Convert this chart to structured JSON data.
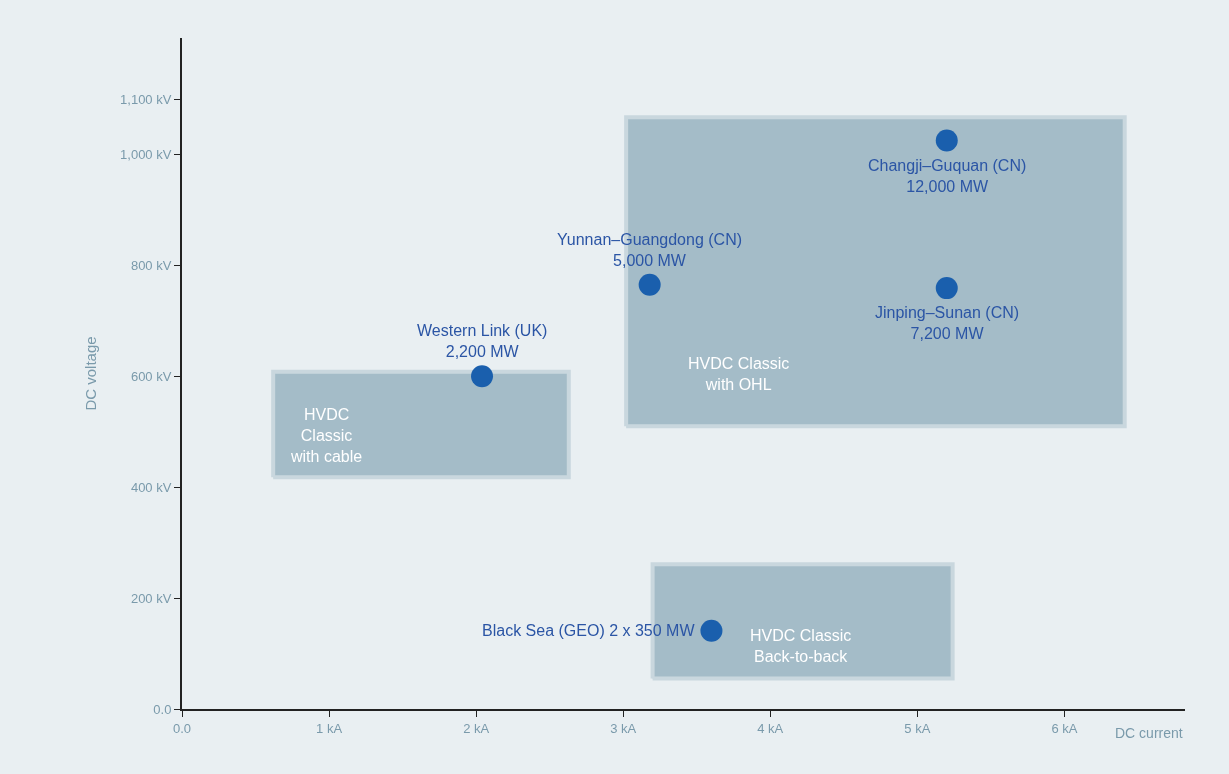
{
  "chart_data": {
    "type": "scatter",
    "xlabel": "DC current",
    "ylabel": "DC voltage",
    "xlim": [
      0,
      6.82
    ],
    "ylim": [
      0,
      1210
    ],
    "xticks": [
      {
        "value": 0,
        "label": "0.0"
      },
      {
        "value": 1,
        "label": "1 kA"
      },
      {
        "value": 2,
        "label": "2 kA"
      },
      {
        "value": 3,
        "label": "3 kA"
      },
      {
        "value": 4,
        "label": "4 kA"
      },
      {
        "value": 5,
        "label": "5 kA"
      },
      {
        "value": 6,
        "label": "6 kA"
      }
    ],
    "yticks": [
      {
        "value": 0,
        "label": "0.0"
      },
      {
        "value": 200,
        "label": "200 kV"
      },
      {
        "value": 400,
        "label": "400 kV"
      },
      {
        "value": 600,
        "label": "600 kV"
      },
      {
        "value": 800,
        "label": "800 kV"
      },
      {
        "value": 1000,
        "label": "1,000 kV"
      },
      {
        "value": 1100,
        "label": "1,100 kV"
      }
    ],
    "grid": false,
    "series": [
      {
        "type": "area",
        "name": "HVDC\nClassic\nwith cable",
        "color": "#a4bcc8",
        "x": [
          0.62,
          2.63,
          2.63,
          0.62,
          0.62
        ],
        "values": [
          418,
          418,
          608,
          608,
          418
        ]
      },
      {
        "type": "area",
        "name": "HVDC Classic\nwith OHL",
        "color": "#a4bcc8",
        "x": [
          3.02,
          6.41,
          6.41,
          3.02,
          3.02
        ],
        "values": [
          510,
          510,
          1067,
          1067,
          510
        ]
      },
      {
        "type": "area",
        "name": "HVDC Classic\nBack-to-back",
        "color": "#a4bcc8",
        "x": [
          3.2,
          5.24,
          5.24,
          3.2,
          3.2
        ],
        "values": [
          55,
          55,
          261,
          261,
          55
        ]
      },
      {
        "color": "#1a5fad",
        "marker": "circle",
        "x": [
          2.04,
          3.18,
          5.2,
          5.2,
          3.6
        ],
        "values": [
          600,
          765,
          1025,
          759,
          141
        ]
      }
    ],
    "annotations": [
      "Western Link (UK)\n2,200 MW",
      "Yunnan–Guangdong (CN)\n5,000 MW",
      "Changji–Guquan (CN)\n12,000 MW",
      "Jinping–Sunan (CN)\n7,200 MW",
      "Black Sea (GEO) 2 x 350 MW"
    ]
  }
}
